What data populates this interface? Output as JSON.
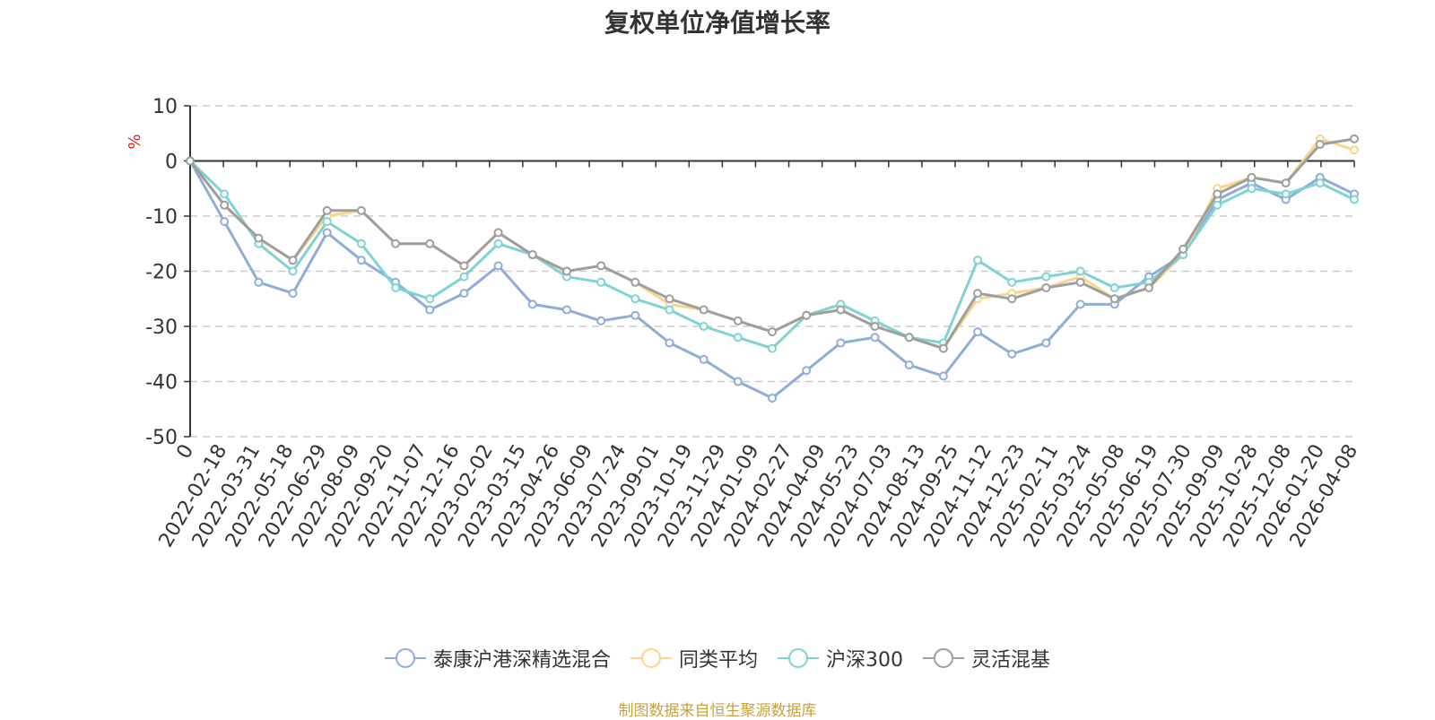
{
  "chart_data": {
    "type": "line",
    "title": "复权单位净值增长率",
    "ylabel": "%",
    "ylim": [
      -50,
      10
    ],
    "yticks": [
      10,
      0,
      -10,
      -20,
      -30,
      -40,
      -50
    ],
    "grid": true,
    "legend_position": "bottom",
    "x_start_label": "0",
    "categories": [
      "2022-02-18",
      "2022-03-31",
      "2022-05-18",
      "2022-06-29",
      "2022-08-09",
      "2022-09-20",
      "2022-11-07",
      "2022-12-16",
      "2023-02-02",
      "2023-03-15",
      "2023-04-26",
      "2023-06-09",
      "2023-07-24",
      "2023-09-01",
      "2023-10-19",
      "2023-11-29",
      "2024-01-09",
      "2024-02-27",
      "2024-04-09",
      "2024-05-23",
      "2024-07-03",
      "2024-08-13",
      "2024-09-25",
      "2024-11-12",
      "2024-12-23",
      "2025-02-11",
      "2025-03-24",
      "2025-05-08",
      "2025-06-19",
      "2025-07-30",
      "2025-09-09",
      "2025-10-28",
      "2025-12-08",
      "2026-01-20",
      "2026-04-08"
    ],
    "series": [
      {
        "name": "泰康沪港深精选混合",
        "color": "#8eadd9",
        "values": [
          0,
          -11,
          -22,
          -24,
          -13,
          -18,
          -22,
          -27,
          -24,
          -19,
          -26,
          -27,
          -29,
          -28,
          -33,
          -36,
          -40,
          -43,
          -38,
          -33,
          -32,
          -37,
          -39,
          -31,
          -35,
          -33,
          -26,
          -26,
          -21,
          -17,
          -7,
          -4,
          -7,
          -3,
          -6
        ]
      },
      {
        "name": "同类平均",
        "color": "#fad58a",
        "values": [
          0,
          -8,
          -14,
          -18,
          -10,
          -9,
          -15,
          -15,
          -19,
          -13,
          -17,
          -20,
          -19,
          -22,
          -26,
          -27,
          -29,
          -31,
          -28,
          -27,
          -30,
          -32,
          -34,
          -25,
          -24,
          -23,
          -21,
          -25,
          -23,
          -17,
          -5,
          -3,
          -4,
          4,
          2
        ]
      },
      {
        "name": "沪深300",
        "color": "#7fd3d3",
        "values": [
          0,
          -6,
          -15,
          -20,
          -11,
          -15,
          -23,
          -25,
          -21,
          -15,
          -17,
          -21,
          -22,
          -25,
          -27,
          -30,
          -32,
          -34,
          -28,
          -26,
          -29,
          -32,
          -33,
          -18,
          -22,
          -21,
          -20,
          -23,
          -22,
          -17,
          -8,
          -5,
          -6,
          -4,
          -7
        ]
      },
      {
        "name": "灵活混基",
        "color": "#9e9e9e",
        "values": [
          0,
          -8,
          -14,
          -18,
          -9,
          -9,
          -15,
          -15,
          -19,
          -13,
          -17,
          -20,
          -19,
          -22,
          -25,
          -27,
          -29,
          -31,
          -28,
          -27,
          -30,
          -32,
          -34,
          -24,
          -25,
          -23,
          -22,
          -25,
          -23,
          -16,
          -6,
          -3,
          -4,
          3,
          4
        ]
      }
    ]
  },
  "footer": {
    "source": "制图数据来自恒生聚源数据库"
  }
}
